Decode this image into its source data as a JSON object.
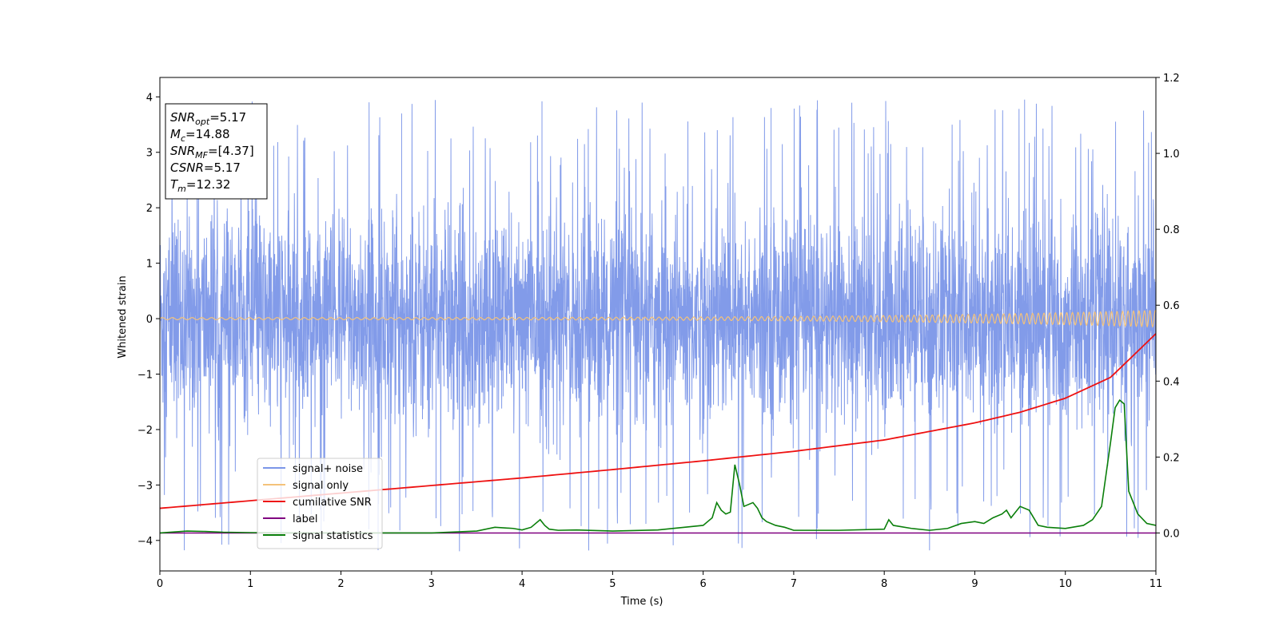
{
  "chart_data": {
    "type": "line",
    "xlabel": "Time (s)",
    "ylabel": "Whitened strain",
    "xlim": [
      0,
      11
    ],
    "ylim_left": [
      -4.55,
      4.35
    ],
    "ylim_right": [
      -0.1,
      1.2
    ],
    "x_ticks": [
      0,
      1,
      2,
      3,
      4,
      5,
      6,
      7,
      8,
      9,
      10,
      11
    ],
    "y_ticks_left": [
      -4,
      -3,
      -2,
      -1,
      0,
      1,
      2,
      3,
      4
    ],
    "y_ticks_right": [
      0.0,
      0.2,
      0.4,
      0.6,
      0.8,
      1.0,
      1.2
    ],
    "y_tick_labels_left": [
      "−4",
      "−3",
      "−2",
      "−1",
      "0",
      "1",
      "2",
      "3",
      "4"
    ],
    "y_tick_labels_right": [
      "0.0",
      "0.2",
      "0.4",
      "0.6",
      "0.8",
      "1.0",
      "1.2"
    ],
    "legend_position": "lower-left",
    "info_box": {
      "position": "top-left",
      "lines": [
        {
          "label": "SNR",
          "sub": "opt",
          "value": "=5.17"
        },
        {
          "label": "M",
          "sub": "c",
          "value": "=14.88"
        },
        {
          "label": "SNR",
          "sub": "MF",
          "value": "=[4.37]"
        },
        {
          "label": "CSNR",
          "sub": "",
          "value": "=5.17"
        },
        {
          "label": "T",
          "sub": "m",
          "value": "=12.32"
        }
      ]
    },
    "series": [
      {
        "name": "signal+ noise",
        "axis": "left",
        "color": "#7b96e8",
        "style": "dense-noise",
        "typical_range": [
          -2.0,
          2.0
        ],
        "extremes_range": [
          -4.2,
          3.95
        ],
        "notable_peaks": [
          {
            "x": 4.22,
            "y": 3.92
          },
          {
            "x": 9.55,
            "y": 3.95
          },
          {
            "x": 2.67,
            "y": 3.7
          },
          {
            "x": 6.75,
            "y": 3.8
          },
          {
            "x": 8.5,
            "y": -4.18
          },
          {
            "x": 2.65,
            "y": -3.82
          },
          {
            "x": 3.05,
            "y": -3.6
          }
        ]
      },
      {
        "name": "signal only",
        "axis": "left",
        "color": "#f4c27a",
        "style": "chirp",
        "amplitude_start": 0.02,
        "amplitude_end": 0.15
      },
      {
        "name": "cumilative SNR",
        "axis": "right",
        "color": "#ee1111",
        "x": [
          0,
          1,
          2,
          3,
          4,
          5,
          6,
          7,
          8,
          9,
          9.5,
          10,
          10.5,
          11
        ],
        "values": [
          0.065,
          0.085,
          0.105,
          0.125,
          0.145,
          0.167,
          0.19,
          0.215,
          0.245,
          0.29,
          0.318,
          0.355,
          0.41,
          0.525
        ]
      },
      {
        "name": "label",
        "axis": "right",
        "color": "#800080",
        "x": [
          0,
          11
        ],
        "values": [
          0.0,
          0.0
        ]
      },
      {
        "name": "signal statistics",
        "axis": "right",
        "color": "#0a7f0a",
        "x": [
          0,
          0.3,
          0.5,
          0.7,
          1.0,
          1.5,
          2.0,
          2.5,
          3.0,
          3.5,
          3.7,
          3.9,
          4.0,
          4.1,
          4.2,
          4.25,
          4.3,
          4.4,
          4.6,
          5.0,
          5.5,
          6.0,
          6.1,
          6.15,
          6.2,
          6.25,
          6.3,
          6.35,
          6.4,
          6.45,
          6.5,
          6.55,
          6.6,
          6.65,
          6.7,
          6.8,
          6.9,
          7.0,
          7.5,
          8.0,
          8.05,
          8.1,
          8.3,
          8.5,
          8.7,
          8.85,
          9.0,
          9.1,
          9.2,
          9.3,
          9.35,
          9.4,
          9.5,
          9.6,
          9.7,
          9.8,
          10.0,
          10.2,
          10.3,
          10.4,
          10.5,
          10.55,
          10.6,
          10.65,
          10.7,
          10.8,
          10.9,
          11.0
        ],
        "values": [
          0.0,
          0.005,
          0.004,
          0.002,
          0.001,
          0.0,
          0.0,
          0.0,
          0.0,
          0.005,
          0.015,
          0.012,
          0.008,
          0.015,
          0.035,
          0.02,
          0.01,
          0.007,
          0.008,
          0.005,
          0.008,
          0.02,
          0.04,
          0.08,
          0.06,
          0.05,
          0.055,
          0.18,
          0.13,
          0.07,
          0.075,
          0.08,
          0.065,
          0.04,
          0.03,
          0.02,
          0.015,
          0.007,
          0.007,
          0.01,
          0.035,
          0.02,
          0.012,
          0.007,
          0.012,
          0.025,
          0.03,
          0.025,
          0.04,
          0.05,
          0.06,
          0.04,
          0.07,
          0.06,
          0.02,
          0.015,
          0.012,
          0.02,
          0.035,
          0.07,
          0.24,
          0.33,
          0.35,
          0.34,
          0.11,
          0.05,
          0.025,
          0.02
        ]
      }
    ]
  }
}
